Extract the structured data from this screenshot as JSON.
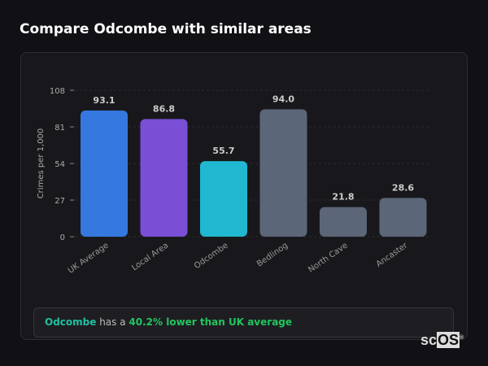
{
  "title": "Compare Odcombe with similar areas",
  "chart_data": {
    "type": "bar",
    "ylabel": "Crimes per 1,000",
    "xlabel": "",
    "ylim": [
      0,
      108
    ],
    "yticks": [
      0,
      27,
      54,
      81,
      108
    ],
    "grid": true,
    "categories": [
      "UK Average",
      "Local Area",
      "Odcombe",
      "Bedlinog",
      "North Cave",
      "Ancaster"
    ],
    "values": [
      93.1,
      86.8,
      55.7,
      94.0,
      21.8,
      28.6
    ],
    "labels": [
      "93.1",
      "86.8",
      "55.7",
      "94.0",
      "21.8",
      "28.6"
    ],
    "colors": [
      "#3578e0",
      "#7a4fd6",
      "#20b8d0",
      "#5b6678",
      "#5b6678",
      "#5b6678"
    ]
  },
  "insight": {
    "area": "Odcombe",
    "middle": " has a ",
    "highlight": "40.2% lower than UK average"
  },
  "logo": {
    "text": "sc",
    "boxed": "OS",
    "mark": "®"
  }
}
